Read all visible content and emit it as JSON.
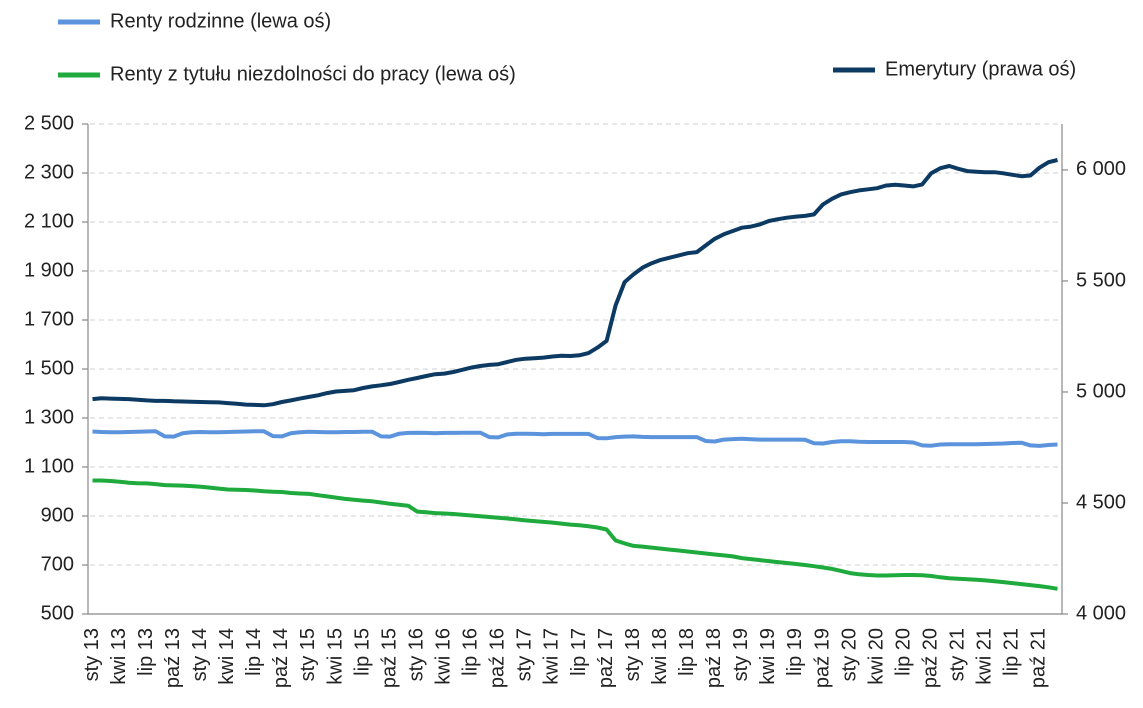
{
  "chart_data": {
    "type": "line",
    "categories": [
      "sty 13",
      null,
      null,
      "kwi 13",
      null,
      null,
      "lip 13",
      null,
      null,
      "paź 13",
      null,
      null,
      "sty 14",
      null,
      null,
      "kwi 14",
      null,
      null,
      "lip 14",
      null,
      null,
      "paź 14",
      null,
      null,
      "sty 15",
      null,
      null,
      "kwi 15",
      null,
      null,
      "lip 15",
      null,
      null,
      "paź 15",
      null,
      null,
      "sty 16",
      null,
      null,
      "kwi 16",
      null,
      null,
      "lip 16",
      null,
      null,
      "paź 16",
      null,
      null,
      "sty 17",
      null,
      null,
      "kwi 17",
      null,
      null,
      "lip 17",
      null,
      null,
      "paź 17",
      null,
      null,
      "sty 18",
      null,
      null,
      "kwi 18",
      null,
      null,
      "lip 18",
      null,
      null,
      "paź 18",
      null,
      null,
      "sty 19",
      null,
      null,
      "kwi 19",
      null,
      null,
      "lip 19",
      null,
      null,
      "paź 19",
      null,
      null,
      "sty 20",
      null,
      null,
      "kwi 20",
      null,
      null,
      "lip 20",
      null,
      null,
      "paź 20",
      null,
      null,
      "sty 21",
      null,
      null,
      "kwi 21",
      null,
      null,
      "lip 21",
      null,
      null,
      "paź 21",
      null,
      null
    ],
    "series": [
      {
        "name": "Renty rodzinne (lewa oś)",
        "color": "#5b93dc",
        "axis": "y",
        "values": [
          1245,
          1243,
          1242,
          1242,
          1243,
          1244,
          1245,
          1246,
          1225,
          1224,
          1238,
          1242,
          1243,
          1242,
          1242,
          1243,
          1244,
          1245,
          1246,
          1246,
          1226,
          1225,
          1238,
          1242,
          1244,
          1243,
          1242,
          1242,
          1243,
          1243,
          1244,
          1244,
          1225,
          1224,
          1236,
          1239,
          1240,
          1239,
          1238,
          1239,
          1239,
          1240,
          1240,
          1240,
          1222,
          1221,
          1233,
          1236,
          1236,
          1235,
          1234,
          1235,
          1235,
          1235,
          1235,
          1235,
          1218,
          1217,
          1222,
          1224,
          1225,
          1223,
          1222,
          1222,
          1222,
          1222,
          1222,
          1222,
          1206,
          1204,
          1212,
          1214,
          1215,
          1213,
          1212,
          1212,
          1212,
          1212,
          1212,
          1211,
          1197,
          1196,
          1202,
          1205,
          1205,
          1203,
          1202,
          1202,
          1202,
          1202,
          1202,
          1200,
          1188,
          1187,
          1192,
          1193,
          1193,
          1193,
          1193,
          1194,
          1195,
          1196,
          1198,
          1199,
          1188,
          1186,
          1190,
          1192
        ]
      },
      {
        "name": "Renty z tytułu niezdolności do pracy (lewa oś)",
        "color": "#1eaa3c",
        "axis": "y",
        "values": [
          1045,
          1045,
          1043,
          1040,
          1036,
          1034,
          1033,
          1030,
          1026,
          1025,
          1024,
          1022,
          1019,
          1016,
          1012,
          1008,
          1007,
          1006,
          1004,
          1001,
          999,
          998,
          994,
          992,
          990,
          985,
          980,
          975,
          970,
          966,
          963,
          960,
          955,
          950,
          946,
          942,
          918,
          915,
          912,
          910,
          908,
          905,
          902,
          899,
          896,
          893,
          890,
          886,
          882,
          879,
          876,
          873,
          869,
          865,
          862,
          858,
          853,
          845,
          800,
          788,
          778,
          775,
          771,
          767,
          763,
          759,
          755,
          751,
          747,
          743,
          739,
          735,
          728,
          724,
          720,
          716,
          712,
          708,
          704,
          700,
          695,
          690,
          684,
          676,
          667,
          662,
          659,
          657,
          657,
          658,
          659,
          659,
          658,
          655,
          650,
          646,
          644,
          642,
          640,
          637,
          634,
          630,
          626,
          622,
          618,
          614,
          609,
          603
        ]
      },
      {
        "name": "Emerytury (prawa oś)",
        "color": "#0c3a63",
        "axis": "y2",
        "values": [
          4968,
          4972,
          4970,
          4969,
          4968,
          4965,
          4962,
          4960,
          4960,
          4958,
          4957,
          4956,
          4955,
          4954,
          4953,
          4950,
          4947,
          4943,
          4942,
          4940,
          4945,
          4955,
          4962,
          4970,
          4978,
          4985,
          4995,
          5002,
          5005,
          5008,
          5018,
          5025,
          5030,
          5036,
          5045,
          5055,
          5063,
          5072,
          5080,
          5083,
          5090,
          5100,
          5110,
          5117,
          5122,
          5125,
          5135,
          5145,
          5150,
          5152,
          5155,
          5160,
          5163,
          5162,
          5165,
          5175,
          5200,
          5230,
          5390,
          5495,
          5530,
          5560,
          5580,
          5595,
          5605,
          5615,
          5625,
          5630,
          5660,
          5690,
          5710,
          5725,
          5740,
          5745,
          5755,
          5770,
          5778,
          5785,
          5790,
          5793,
          5800,
          5845,
          5870,
          5890,
          5900,
          5908,
          5913,
          5918,
          5930,
          5933,
          5930,
          5926,
          5935,
          5985,
          6008,
          6018,
          6005,
          5995,
          5992,
          5990,
          5990,
          5985,
          5978,
          5972,
          5975,
          6010,
          6035,
          6045
        ]
      }
    ],
    "ylim": [
      500,
      2500
    ],
    "yticks": [
      500,
      700,
      900,
      {
        "value": 1100,
        "label": "1 100"
      },
      {
        "value": 1300,
        "label": "1 300"
      },
      {
        "value": 1500,
        "label": "1 500"
      },
      {
        "value": 1700,
        "label": "1 700"
      },
      {
        "value": 1900,
        "label": "1 900"
      },
      {
        "value": 2100,
        "label": "2 100"
      },
      {
        "value": 2300,
        "label": "2 300"
      },
      {
        "value": 2500,
        "label": "2 500"
      }
    ],
    "y2lim": [
      4000,
      6207
    ],
    "y2ticks": [
      {
        "value": 4000,
        "label": "4 000"
      },
      {
        "value": 4500,
        "label": "4 500"
      },
      {
        "value": 5000,
        "label": "5 000"
      },
      {
        "value": 5500,
        "label": "5 500"
      },
      {
        "value": 6000,
        "label": "6 000"
      }
    ],
    "grid": true
  }
}
